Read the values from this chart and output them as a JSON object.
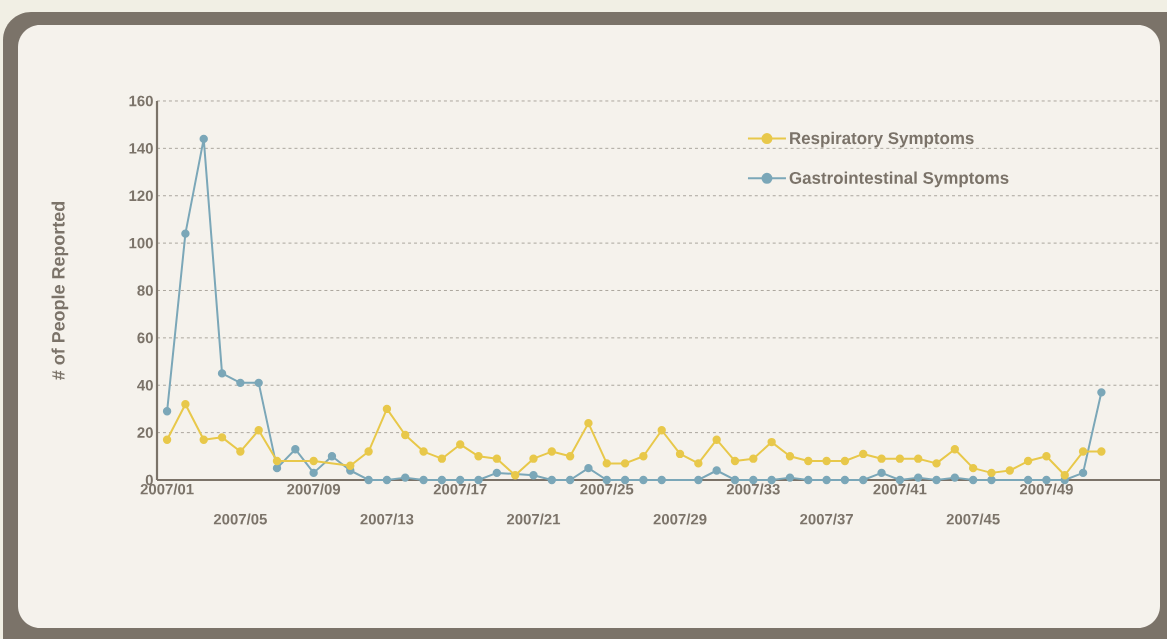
{
  "chart_data": {
    "type": "line",
    "ylabel": "# of People Reported",
    "categories": [
      "2007/01",
      null,
      null,
      null,
      "2007/05",
      null,
      null,
      null,
      "2007/09",
      null,
      null,
      null,
      "2007/13",
      null,
      null,
      null,
      "2007/17",
      null,
      null,
      null,
      "2007/21",
      null,
      null,
      null,
      "2007/25",
      null,
      null,
      null,
      "2007/29",
      null,
      null,
      null,
      "2007/33",
      null,
      null,
      null,
      "2007/37",
      null,
      null,
      null,
      "2007/41",
      null,
      null,
      null,
      "2007/45",
      null,
      null,
      null,
      "2007/49",
      null,
      null,
      null
    ],
    "series": [
      {
        "name": "Respiratory Symptoms",
        "color": "#e8c84a",
        "values": [
          17,
          32,
          17,
          18,
          12,
          21,
          8,
          null,
          8,
          null,
          6,
          12,
          30,
          19,
          12,
          9,
          15,
          10,
          9,
          2,
          9,
          12,
          10,
          24,
          7,
          7,
          10,
          21,
          11,
          7,
          17,
          8,
          9,
          16,
          10,
          8,
          8,
          8,
          11,
          9,
          9,
          9,
          7,
          13,
          5,
          3,
          4,
          8,
          10,
          2,
          12,
          12
        ]
      },
      {
        "name": "Gastrointestinal Symptoms",
        "color": "#7ba7b8",
        "values": [
          29,
          104,
          144,
          45,
          41,
          41,
          5,
          13,
          3,
          10,
          4,
          0,
          0,
          1,
          0,
          0,
          0,
          0,
          3,
          null,
          2,
          0,
          0,
          5,
          0,
          0,
          0,
          0,
          null,
          0,
          4,
          0,
          0,
          0,
          1,
          0,
          0,
          0,
          0,
          3,
          0,
          1,
          0,
          1,
          0,
          0,
          null,
          0,
          0,
          0,
          3,
          37
        ]
      }
    ],
    "ylim": [
      0,
      160
    ],
    "yticks": [
      0,
      20,
      40,
      60,
      80,
      100,
      120,
      140,
      160
    ],
    "grid": "y",
    "legend": "top right",
    "marker": "circle"
  }
}
